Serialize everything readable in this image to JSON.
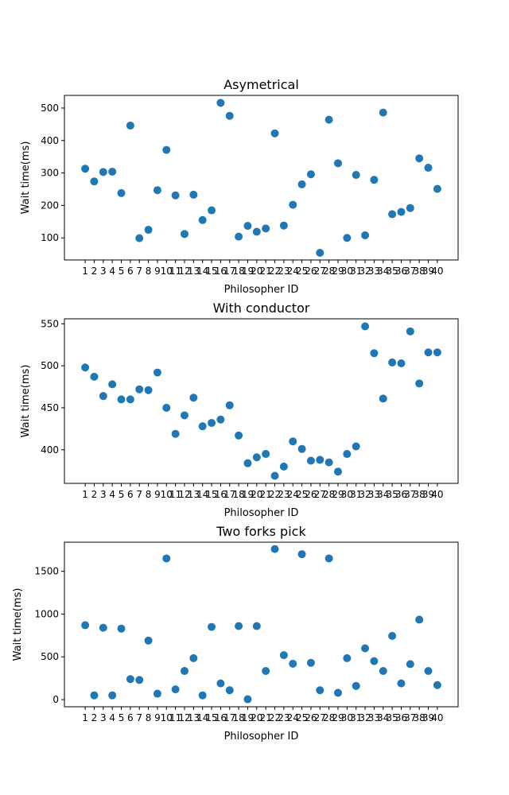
{
  "chart_data": [
    {
      "type": "scatter",
      "title": "Asymetrical",
      "xlabel": "Philosopher ID",
      "ylabel": "Wait time(ms)",
      "x": [
        1,
        2,
        3,
        4,
        5,
        6,
        7,
        8,
        9,
        10,
        11,
        12,
        13,
        14,
        15,
        16,
        17,
        18,
        19,
        20,
        21,
        22,
        23,
        24,
        25,
        26,
        27,
        28,
        29,
        30,
        31,
        32,
        33,
        34,
        35,
        36,
        37,
        38,
        39,
        40
      ],
      "xticks": [
        "1",
        "2",
        "3",
        "4",
        "5",
        "6",
        "7",
        "8",
        "9",
        "10",
        "11",
        "12",
        "13",
        "14",
        "15",
        "16",
        "17",
        "18",
        "19",
        "20",
        "21",
        "22",
        "23",
        "24",
        "25",
        "26",
        "27",
        "28",
        "29",
        "30",
        "31",
        "32",
        "33",
        "34",
        "35",
        "36",
        "37",
        "38",
        "39",
        "40"
      ],
      "y": [
        313,
        274,
        303,
        304,
        238,
        446,
        99,
        125,
        247,
        371,
        231,
        112,
        233,
        155,
        185,
        516,
        476,
        104,
        137,
        119,
        129,
        422,
        138,
        202,
        265,
        296,
        54,
        464,
        330,
        100,
        294,
        108,
        279,
        486,
        173,
        180,
        192,
        345,
        316,
        251
      ],
      "yticks": [
        100,
        200,
        300,
        400,
        500
      ],
      "ylim": [
        32,
        539
      ],
      "grid": false,
      "color": "#1f77b4"
    },
    {
      "type": "scatter",
      "title": "With conductor",
      "xlabel": "Philosopher ID",
      "ylabel": "Wait time(ms)",
      "x": [
        1,
        2,
        3,
        4,
        5,
        6,
        7,
        8,
        9,
        10,
        11,
        12,
        13,
        14,
        15,
        16,
        17,
        18,
        19,
        20,
        21,
        22,
        23,
        24,
        25,
        26,
        27,
        28,
        29,
        30,
        31,
        32,
        33,
        34,
        35,
        36,
        37,
        38,
        39,
        40
      ],
      "xticks": [
        "1",
        "2",
        "3",
        "4",
        "5",
        "6",
        "7",
        "8",
        "9",
        "10",
        "11",
        "12",
        "13",
        "14",
        "15",
        "16",
        "17",
        "18",
        "19",
        "20",
        "21",
        "22",
        "23",
        "24",
        "25",
        "26",
        "27",
        "28",
        "29",
        "30",
        "31",
        "32",
        "33",
        "34",
        "35",
        "36",
        "37",
        "38",
        "39",
        "40"
      ],
      "y": [
        498,
        487,
        464,
        478,
        460,
        460,
        472,
        471,
        492,
        450,
        419,
        441,
        462,
        428,
        432,
        436,
        453,
        417,
        384,
        391,
        395,
        369,
        380,
        410,
        401,
        387,
        388,
        385,
        374,
        395,
        404,
        547,
        515,
        461,
        504,
        503,
        541,
        479,
        516,
        516
      ],
      "yticks": [
        400,
        450,
        500,
        550
      ],
      "ylim": [
        360,
        556
      ],
      "grid": false,
      "color": "#1f77b4"
    },
    {
      "type": "scatter",
      "title": "Two forks pick",
      "xlabel": "Philosopher ID",
      "ylabel": "Wait time(ms)",
      "x": [
        1,
        2,
        3,
        4,
        5,
        6,
        7,
        8,
        9,
        10,
        11,
        12,
        13,
        14,
        15,
        16,
        17,
        18,
        19,
        20,
        21,
        22,
        23,
        24,
        25,
        26,
        27,
        28,
        29,
        30,
        31,
        32,
        33,
        34,
        35,
        36,
        37,
        38,
        39,
        40
      ],
      "xticks": [
        "1",
        "2",
        "3",
        "4",
        "5",
        "6",
        "7",
        "8",
        "9",
        "10",
        "11",
        "12",
        "13",
        "14",
        "15",
        "16",
        "17",
        "18",
        "19",
        "20",
        "21",
        "22",
        "23",
        "24",
        "25",
        "26",
        "27",
        "28",
        "29",
        "30",
        "31",
        "32",
        "33",
        "34",
        "35",
        "36",
        "37",
        "38",
        "39",
        "40"
      ],
      "y": [
        870,
        50,
        840,
        50,
        830,
        240,
        230,
        690,
        70,
        1650,
        120,
        335,
        485,
        50,
        850,
        190,
        110,
        860,
        5,
        860,
        335,
        1760,
        520,
        420,
        1700,
        430,
        110,
        1650,
        80,
        485,
        160,
        600,
        450,
        335,
        745,
        190,
        415,
        935,
        335,
        170
      ],
      "yticks": [
        0,
        500,
        1000,
        1500
      ],
      "ylim": [
        -83,
        1840
      ],
      "grid": false,
      "color": "#1f77b4"
    }
  ]
}
